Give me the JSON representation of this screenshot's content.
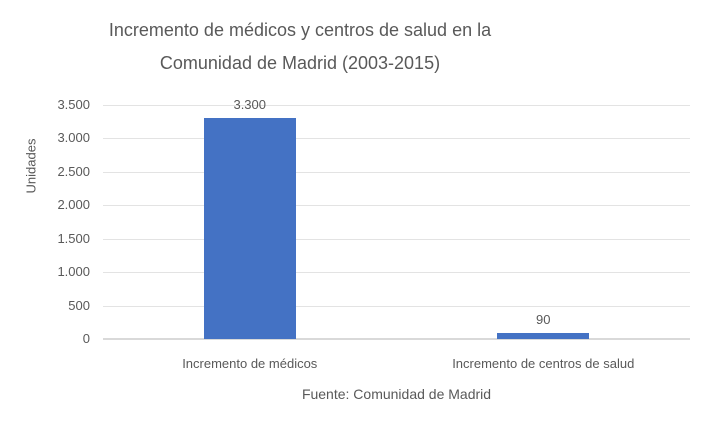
{
  "chart_data": {
    "type": "bar",
    "title": "Incremento de médicos y centros de salud en la Comunidad de Madrid (2003-2015)",
    "title_lines": [
      "Incremento de médicos y centros de salud en la",
      "Comunidad de Madrid (2003-2015)"
    ],
    "categories": [
      "Incremento de médicos",
      "Incremento de centros de salud"
    ],
    "values": [
      3300,
      90
    ],
    "data_labels": [
      "3.300",
      "90"
    ],
    "xlabel": "Fuente: Comunidad de Madrid",
    "ylabel": "Unidades",
    "ylim": [
      0,
      3500
    ],
    "yticks": [
      {
        "value": 0,
        "label": "0"
      },
      {
        "value": 500,
        "label": "500"
      },
      {
        "value": 1000,
        "label": "1.000"
      },
      {
        "value": 1500,
        "label": "1.500"
      },
      {
        "value": 2000,
        "label": "2.000"
      },
      {
        "value": 2500,
        "label": "2.500"
      },
      {
        "value": 3000,
        "label": "3.000"
      },
      {
        "value": 3500,
        "label": "3.500"
      }
    ],
    "grid": true,
    "legend": false,
    "colors": {
      "bar": "#4472C4",
      "text": "#595959",
      "gridline": "#e3e3e3",
      "axis_line": "#d9d9d9",
      "background": "#ffffff"
    }
  }
}
